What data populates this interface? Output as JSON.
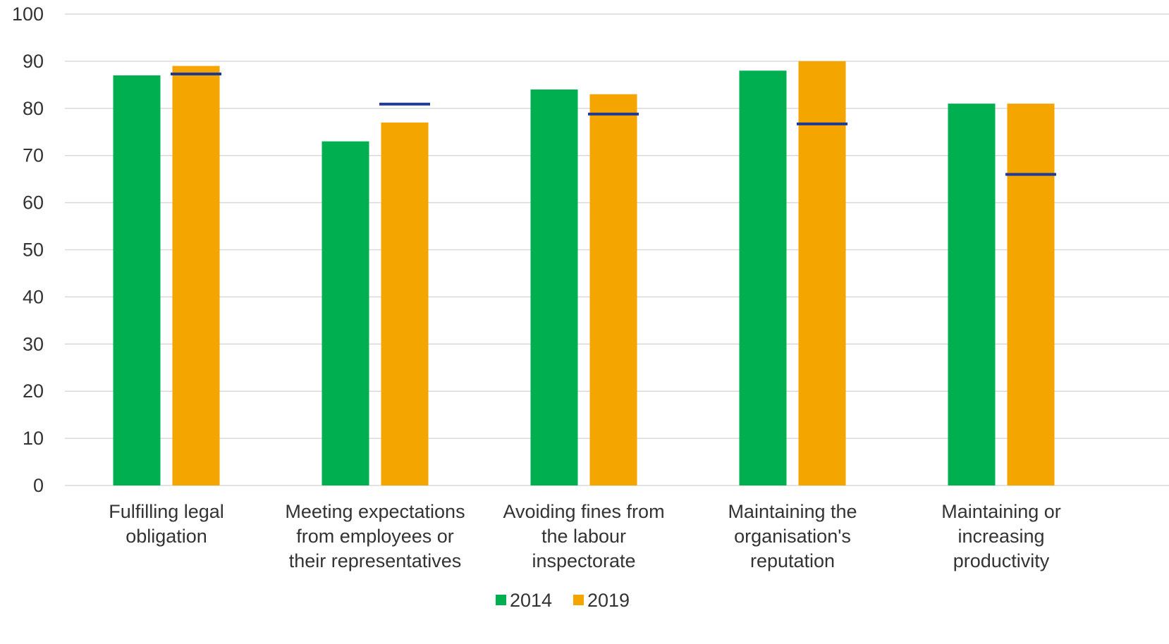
{
  "chart_data": {
    "type": "bar",
    "title": "",
    "xlabel": "",
    "ylabel": "",
    "ylim": [
      0,
      100
    ],
    "yticks": [
      0,
      10,
      20,
      30,
      40,
      50,
      60,
      70,
      80,
      90,
      100
    ],
    "grid": true,
    "legend_position": "bottom",
    "categories": [
      [
        "Fulfilling legal",
        "obligation"
      ],
      [
        "Meeting expectations",
        "from employees or",
        "their representatives"
      ],
      [
        "Avoiding fines from",
        "the labour",
        "inspectorate"
      ],
      [
        "Maintaining the",
        "organisation's",
        "reputation"
      ],
      [
        "Maintaining or",
        "increasing",
        "productivity"
      ]
    ],
    "series": [
      {
        "name": "2014",
        "color": "#00b050",
        "values": [
          87,
          73,
          84,
          88,
          81
        ]
      },
      {
        "name": "2019",
        "color": "#f5a500",
        "values": [
          89,
          77,
          83,
          90,
          81
        ]
      }
    ],
    "markers": {
      "color": "#1f3a93",
      "series_index": 1,
      "values": [
        87.3,
        80.9,
        78.8,
        76.7,
        66.0
      ]
    }
  }
}
